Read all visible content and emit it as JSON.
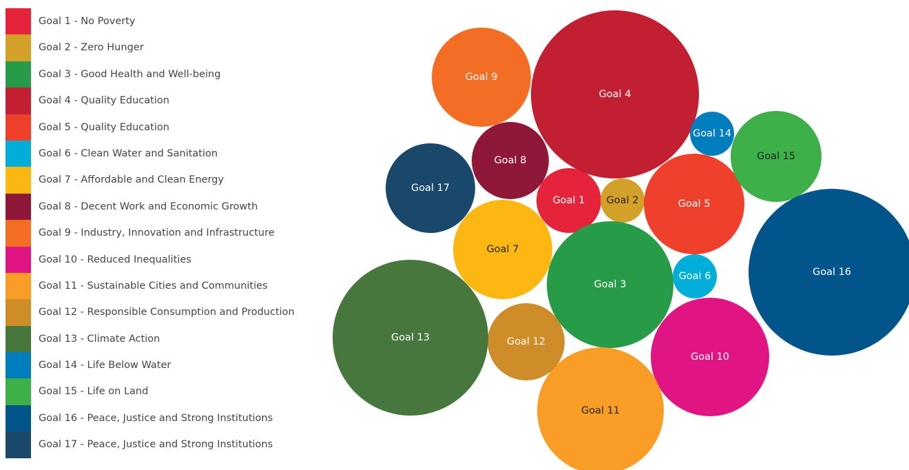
{
  "chart_data": {
    "type": "packed-bubble",
    "legend_placement": "left",
    "series": [
      {
        "label": "Goal 1",
        "legend": "Goal 1 - No Poverty",
        "color": "#E5243B",
        "text_color": "#ffffff"
      },
      {
        "label": "Goal 2",
        "legend": "Goal 2 - Zero Hunger",
        "color": "#D3A029",
        "text_color": "#222222"
      },
      {
        "label": "Goal 3",
        "legend": "Goal 3 - Good Health and Well-being",
        "color": "#279B48",
        "text_color": "#ffffff"
      },
      {
        "label": "Goal 4",
        "legend": "Goal 4 - Quality Education",
        "color": "#C31F33",
        "text_color": "#ffffff"
      },
      {
        "label": "Goal 5",
        "legend": "Goal 5 - Quality Education",
        "color": "#EF402B",
        "text_color": "#ffffff"
      },
      {
        "label": "Goal 6",
        "legend": "Goal 6 - Clean Water and Sanitation",
        "color": "#00AED9",
        "text_color": "#ffffff"
      },
      {
        "label": "Goal 7",
        "legend": "Goal 7 - Affordable and Clean Energy",
        "color": "#FDB713",
        "text_color": "#222222"
      },
      {
        "label": "Goal 8",
        "legend": "Goal 8 - Decent Work and Economic Growth",
        "color": "#8F1838",
        "text_color": "#ffffff"
      },
      {
        "label": "Goal 9",
        "legend": "Goal 9 - Industry, Innovation and Infrastructure",
        "color": "#F36D25",
        "text_color": "#ffffff"
      },
      {
        "label": "Goal 10",
        "legend": "Goal 10 - Reduced Inequalities",
        "color": "#E11484",
        "text_color": "#ffffff"
      },
      {
        "label": "Goal 11",
        "legend": "Goal 11 - Sustainable Cities and Communities",
        "color": "#F99D26",
        "text_color": "#222222"
      },
      {
        "label": "Goal 12",
        "legend": "Goal 12 - Responsible Consumption and Production",
        "color": "#CF8D2A",
        "text_color": "#ffffff"
      },
      {
        "label": "Goal 13",
        "legend": "Goal 13 - Climate Action",
        "color": "#48773E",
        "text_color": "#ffffff"
      },
      {
        "label": "Goal 14",
        "legend": "Goal 14 - Life Below Water",
        "color": "#007DBC",
        "text_color": "#ffffff"
      },
      {
        "label": "Goal 15",
        "legend": "Goal 15 - Life on Land",
        "color": "#3EB049",
        "text_color": "#222222"
      },
      {
        "label": "Goal 16",
        "legend": "Goal 16 - Peace, Justice and Strong Institutions",
        "color": "#02558B",
        "text_color": "#ffffff"
      },
      {
        "label": "Goal 17",
        "legend": "Goal 17 - Peace, Justice and Strong Institutions",
        "color": "#19486A",
        "text_color": "#ffffff"
      }
    ]
  }
}
